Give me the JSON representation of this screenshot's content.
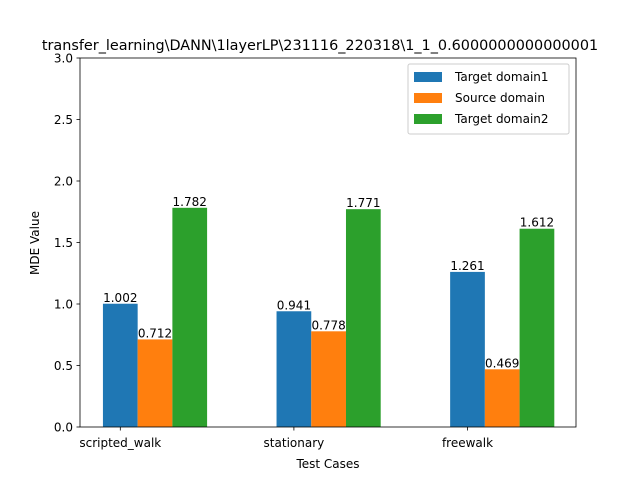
{
  "chart_data": {
    "type": "bar",
    "title": "transfer_learning\\DANN\\1layerLP\\231116_220318\\1_1_0.6000000000000001",
    "xlabel": "Test Cases",
    "ylabel": "MDE Value",
    "categories": [
      "scripted_walk",
      "stationary",
      "freewalk"
    ],
    "ylim": [
      0,
      3.0
    ],
    "yticks": [
      "0.0",
      "0.5",
      "1.0",
      "1.5",
      "2.0",
      "2.5",
      "3.0"
    ],
    "grid": false,
    "legend_position": "top-right",
    "series": [
      {
        "name": "Target domain1",
        "color": "#1f77b4",
        "values": [
          1.002,
          0.941,
          1.261
        ],
        "labels": [
          "1.002",
          "0.941",
          "1.261"
        ]
      },
      {
        "name": "Source domain",
        "color": "#ff7f0e",
        "values": [
          0.712,
          0.778,
          0.469
        ],
        "labels": [
          "0.712",
          "0.778",
          "0.469"
        ]
      },
      {
        "name": "Target domain2",
        "color": "#2ca02c",
        "values": [
          1.782,
          1.771,
          1.612
        ],
        "labels": [
          "1.782",
          "1.771",
          "1.612"
        ]
      }
    ]
  }
}
